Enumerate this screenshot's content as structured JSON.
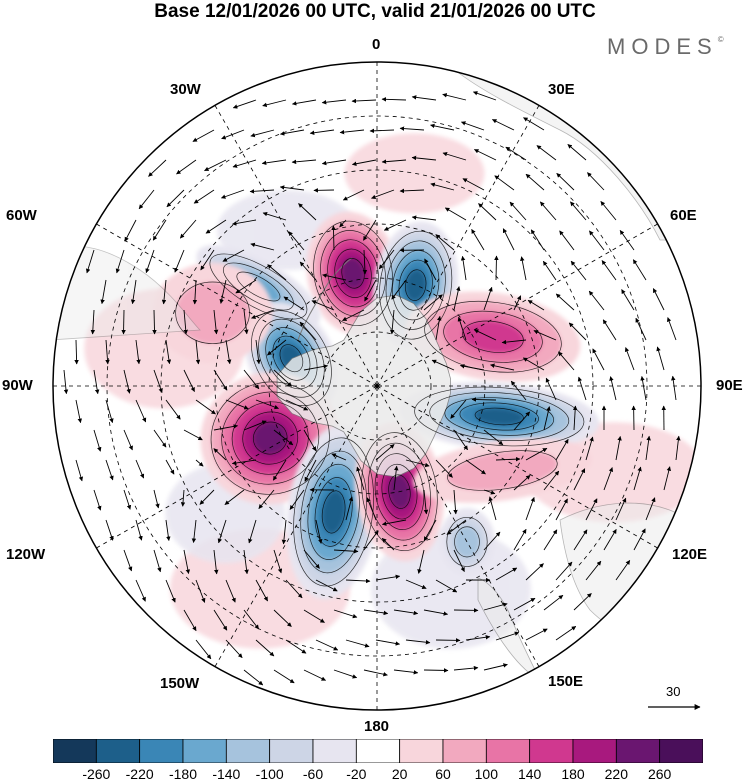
{
  "title": "Base 12/01/2026 00 UTC, valid 21/01/2026 00 UTC",
  "brand": "MODES",
  "brand_mark": "©",
  "longitude_labels": {
    "lon_0": "0",
    "lon_30e": "30E",
    "lon_60e": "60E",
    "lon_90e": "90E",
    "lon_120e": "120E",
    "lon_150e": "150E",
    "lon_180": "180",
    "lon_150w": "150W",
    "lon_120w": "120W",
    "lon_90w": "90W",
    "lon_60w": "60W",
    "lon_30w": "30W"
  },
  "vector_scale": {
    "label": "30",
    "value": 30
  },
  "colorbar": {
    "tick_labels": [
      "-260",
      "-220",
      "-180",
      "-140",
      "-100",
      "-60",
      "-20",
      "20",
      "60",
      "100",
      "140",
      "180",
      "220",
      "260"
    ],
    "colors": [
      "#14385a",
      "#1d5f8a",
      "#3a86b6",
      "#6aa8cf",
      "#a6c3dd",
      "#cdd5e6",
      "#e7e5f0",
      "#ffffff",
      "#f8d6dc",
      "#f2a9bf",
      "#e874a6",
      "#d0388f",
      "#a8197e",
      "#6a1670",
      "#4a0f5a"
    ]
  },
  "colors": {
    "land": "#ebebeb",
    "graticule": "#000000",
    "coast": "#7a7a7a"
  },
  "anomaly_centers": [
    {
      "id": "c1",
      "sign": "positive",
      "level": 240,
      "lat": -58,
      "lon": -12
    },
    {
      "id": "c2",
      "sign": "negative",
      "level": -240,
      "lat": -60,
      "lon": 21
    },
    {
      "id": "c3",
      "sign": "negative",
      "level": -150,
      "lat": -47,
      "lon": -50
    },
    {
      "id": "c4",
      "sign": "positive",
      "level": 160,
      "lat": -55,
      "lon": 67
    },
    {
      "id": "c5",
      "sign": "negative",
      "level": -240,
      "lat": -65,
      "lon": -72
    },
    {
      "id": "c6",
      "sign": "negative",
      "level": -250,
      "lat": -55,
      "lon": 104
    },
    {
      "id": "c7",
      "sign": "positive",
      "level": 250,
      "lat": -57,
      "lon": -116
    },
    {
      "id": "c8",
      "sign": "negative",
      "level": -250,
      "lat": -53,
      "lon": -161
    },
    {
      "id": "c9",
      "sign": "positive",
      "level": 250,
      "lat": -60,
      "lon": 168
    },
    {
      "id": "c10",
      "sign": "positive",
      "level": 60,
      "lat": -48,
      "lon": 124
    },
    {
      "id": "c11",
      "sign": "negative",
      "level": -130,
      "lat": -40,
      "lon": 150
    },
    {
      "id": "c12",
      "sign": "positive",
      "level": 60,
      "lat": -40,
      "lon": -66
    }
  ]
}
